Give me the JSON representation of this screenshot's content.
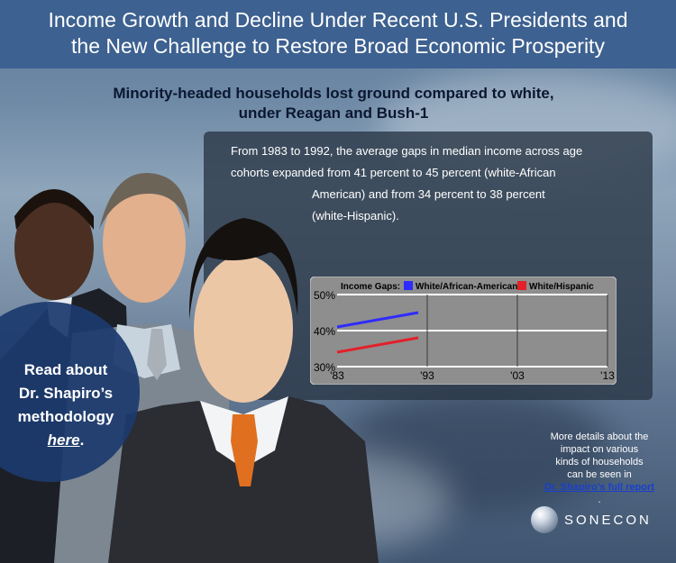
{
  "header": {
    "title_line1": "Income Growth and Decline Under Recent U.S. Presidents and",
    "title_line2": "the New Challenge to Restore Broad Economic Prosperity"
  },
  "subtitle": {
    "line1": "Minority-headed households lost ground compared to white,",
    "line2": "under Reagan and Bush-1"
  },
  "summary": {
    "line1": "From 1983 to 1992, the average gaps in median income across age",
    "line2": "cohorts expanded from 41 percent to 45 percent (white-African",
    "line3": "American) and from 34 percent to 38 percent",
    "line4": "(white-Hispanic)."
  },
  "methodology": {
    "line1": "Read about",
    "line2": "Dr. Shapiro’s",
    "line3": "methodology",
    "link": "here",
    "suffix": "."
  },
  "details": {
    "line1": "More details about the",
    "line2": "impact on various",
    "line3": "kinds of households",
    "line4": "can be seen in",
    "link": "Dr. Shapiro’s full report",
    "suffix": "."
  },
  "logo": {
    "text": "SONECON"
  },
  "chart_data": {
    "type": "line",
    "legend_title": "Income Gaps:",
    "legend_placement": "top",
    "x_ticks": [
      "'83",
      "'93",
      "'03",
      "'13"
    ],
    "xlim": [
      1983,
      2013
    ],
    "y_ticks": [
      "50%",
      "40%",
      "30%"
    ],
    "ylim": [
      30,
      50
    ],
    "grid": true,
    "series": [
      {
        "name": "White/African-American",
        "color": "#2f2bff",
        "x": [
          1983,
          1992
        ],
        "y": [
          41,
          45
        ]
      },
      {
        "name": "White/Hispanic",
        "color": "#e4202a",
        "x": [
          1983,
          1992
        ],
        "y": [
          34,
          38
        ]
      }
    ]
  }
}
